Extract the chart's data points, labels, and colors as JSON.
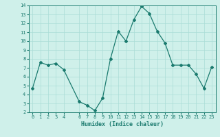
{
  "x": [
    0,
    1,
    2,
    3,
    4,
    6,
    7,
    8,
    9,
    10,
    11,
    12,
    13,
    14,
    15,
    16,
    17,
    18,
    19,
    20,
    21,
    22,
    23
  ],
  "y": [
    4.7,
    7.6,
    7.3,
    7.5,
    6.8,
    3.2,
    2.8,
    2.2,
    3.6,
    8.0,
    11.1,
    10.0,
    12.4,
    13.9,
    13.1,
    11.1,
    9.8,
    7.3,
    7.3,
    7.3,
    6.3,
    4.7,
    7.1
  ],
  "line_color": "#1a7a6e",
  "marker": "D",
  "marker_size": 2.0,
  "bg_color": "#cff0ea",
  "grid_color": "#aaddd6",
  "xlabel": "Humidex (Indice chaleur)",
  "ylim": [
    2,
    14
  ],
  "xlim": [
    -0.5,
    23.5
  ],
  "yticks": [
    2,
    3,
    4,
    5,
    6,
    7,
    8,
    9,
    10,
    11,
    12,
    13,
    14
  ],
  "xticks": [
    0,
    1,
    2,
    3,
    4,
    6,
    7,
    8,
    9,
    10,
    11,
    12,
    13,
    14,
    15,
    16,
    17,
    18,
    19,
    20,
    21,
    22,
    23
  ],
  "tick_color": "#1a7a6e",
  "label_color": "#1a7a6e",
  "font_size_tick": 5.0,
  "font_size_label": 6.0,
  "linewidth": 0.9
}
